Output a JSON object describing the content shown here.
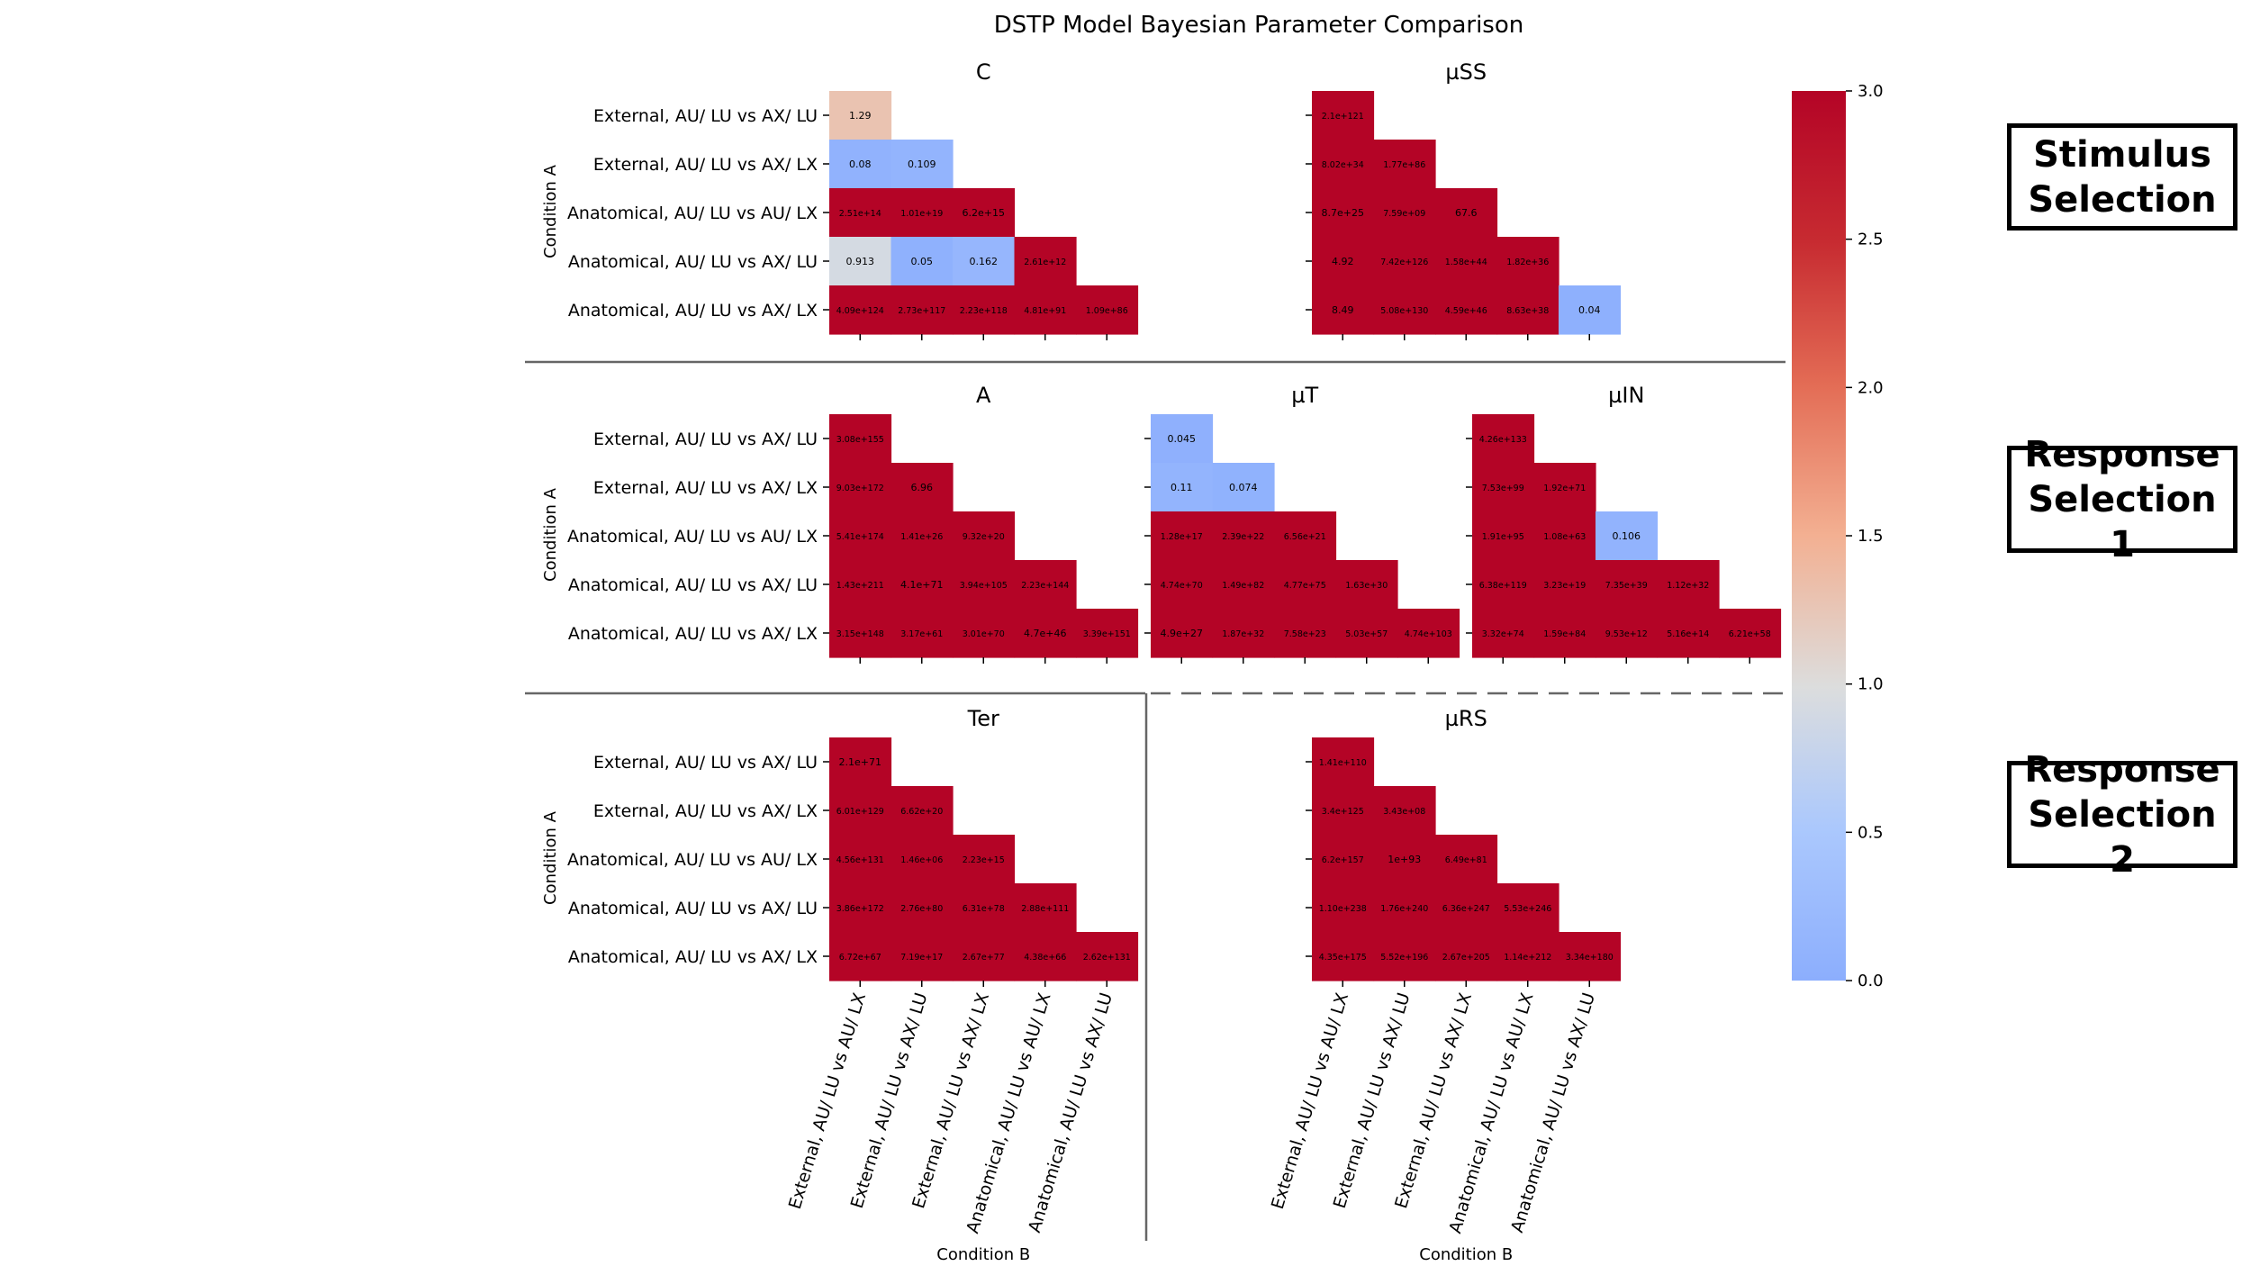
{
  "title": "DSTP Model Bayesian Parameter Comparison",
  "sections": [
    "Stimulus\nSelection",
    "Response\nSelection 1",
    "Response\nSelection 2"
  ],
  "colors": {
    "colormap": "coolwarm",
    "low": "#8caefd",
    "mid": "#dcdddd",
    "high": "#b40426",
    "grey_rule": "#666666"
  },
  "chart_data": {
    "type": "heatmap",
    "title": "DSTP Model Bayesian Parameter Comparison",
    "ylabel": "Condition A",
    "xlabel": "Condition B",
    "row_labels": [
      "External, AU/ LU vs AX/ LU",
      "External, AU/ LU vs AX/ LX",
      "Anatomical, AU/ LU vs AU/ LX",
      "Anatomical, AU/ LU vs AX/ LU",
      "Anatomical, AU/ LU vs AX/ LX"
    ],
    "col_labels": [
      "External, AU/ LU vs AU/ LX",
      "External, AU/ LU vs AX/ LU",
      "External, AU/ LU vs AX/ LX",
      "Anatomical, AU/ LU vs AU/ LX",
      "Anatomical, AU/ LU vs AX/ LU"
    ],
    "colorbar": {
      "vmin": 0.0,
      "vmax": 3.0,
      "ticks": [
        "0.0",
        "0.5",
        "1.0",
        "1.5",
        "2.0",
        "2.5",
        "3.0"
      ]
    },
    "panels": [
      {
        "name": "C",
        "cells": [
          [
            "1.29"
          ],
          [
            "0.08",
            "0.109"
          ],
          [
            "2.51e+14",
            "1.01e+19",
            "6.2e+15"
          ],
          [
            "0.913",
            "0.05",
            "0.162",
            "2.61e+12"
          ],
          [
            "4.09e+124",
            "2.73e+117",
            "2.23e+118",
            "4.81e+91",
            "1.09e+86"
          ]
        ]
      },
      {
        "name": "µSS",
        "cells": [
          [
            "2.1e+121"
          ],
          [
            "8.02e+34",
            "1.77e+86"
          ],
          [
            "8.7e+25",
            "7.59e+09",
            "67.6"
          ],
          [
            "4.92",
            "7.42e+126",
            "1.58e+44",
            "1.82e+36"
          ],
          [
            "8.49",
            "5.08e+130",
            "4.59e+46",
            "8.63e+38",
            "0.04"
          ]
        ]
      },
      {
        "name": "A",
        "cells": [
          [
            "3.08e+155"
          ],
          [
            "9.03e+172",
            "6.96"
          ],
          [
            "5.41e+174",
            "1.41e+26",
            "9.32e+20"
          ],
          [
            "1.43e+211",
            "4.1e+71",
            "3.94e+105",
            "2.23e+144"
          ],
          [
            "3.15e+148",
            "3.17e+61",
            "3.01e+70",
            "4.7e+46",
            "3.39e+151"
          ]
        ]
      },
      {
        "name": "µT",
        "cells": [
          [
            "0.045"
          ],
          [
            "0.11",
            "0.074"
          ],
          [
            "1.28e+17",
            "2.39e+22",
            "6.56e+21"
          ],
          [
            "4.74e+70",
            "1.49e+82",
            "4.77e+75",
            "1.63e+30"
          ],
          [
            "4.9e+27",
            "1.87e+32",
            "7.58e+23",
            "5.03e+57",
            "4.74e+103"
          ]
        ]
      },
      {
        "name": "µIN",
        "cells": [
          [
            "4.26e+133"
          ],
          [
            "7.53e+99",
            "1.92e+71"
          ],
          [
            "1.91e+95",
            "1.08e+63",
            "0.106"
          ],
          [
            "6.38e+119",
            "3.23e+19",
            "7.35e+39",
            "1.12e+32"
          ],
          [
            "3.32e+74",
            "1.59e+84",
            "9.53e+12",
            "5.16e+14",
            "6.21e+58"
          ]
        ]
      },
      {
        "name": "Ter",
        "cells": [
          [
            "2.1e+71"
          ],
          [
            "6.01e+129",
            "6.62e+20"
          ],
          [
            "4.56e+131",
            "1.46e+06",
            "2.23e+15"
          ],
          [
            "3.86e+172",
            "2.76e+80",
            "6.31e+78",
            "2.88e+111"
          ],
          [
            "6.72e+67",
            "7.19e+17",
            "2.67e+77",
            "4.38e+66",
            "2.62e+131"
          ]
        ]
      },
      {
        "name": "µRS",
        "cells": [
          [
            "1.41e+110"
          ],
          [
            "3.4e+125",
            "3.43e+08"
          ],
          [
            "6.2e+157",
            "1e+93",
            "6.49e+81"
          ],
          [
            "1.10e+238",
            "1.76e+240",
            "6.36e+247",
            "5.53e+246"
          ],
          [
            "4.35e+175",
            "5.52e+196",
            "2.67e+205",
            "1.14e+212",
            "3.34e+180"
          ]
        ]
      }
    ]
  }
}
